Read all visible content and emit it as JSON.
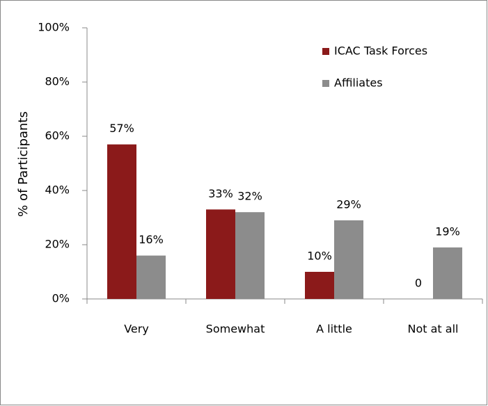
{
  "chart_data": {
    "type": "bar",
    "categories": [
      "Very",
      "Somewhat",
      "A little",
      "Not at all"
    ],
    "series": [
      {
        "name": "ICAC Task Forces",
        "color": "#8b1a1a",
        "values": [
          57,
          33,
          10,
          0
        ],
        "value_labels": [
          "57%",
          "33%",
          "10%",
          "0"
        ]
      },
      {
        "name": "Affiliates",
        "color": "#8c8c8c",
        "values": [
          16,
          32,
          29,
          19
        ],
        "value_labels": [
          "16%",
          "32%",
          "29%",
          "19%"
        ]
      }
    ],
    "ylabel": "% of Participants",
    "ylim": [
      0,
      100
    ],
    "yticks": [
      {
        "value": 0,
        "label": "0%"
      },
      {
        "value": 20,
        "label": "20%"
      },
      {
        "value": 40,
        "label": "40%"
      },
      {
        "value": 60,
        "label": "60%"
      },
      {
        "value": 80,
        "label": "80%"
      },
      {
        "value": 100,
        "label": "100%"
      }
    ],
    "grid": false,
    "legend": "top-right"
  }
}
